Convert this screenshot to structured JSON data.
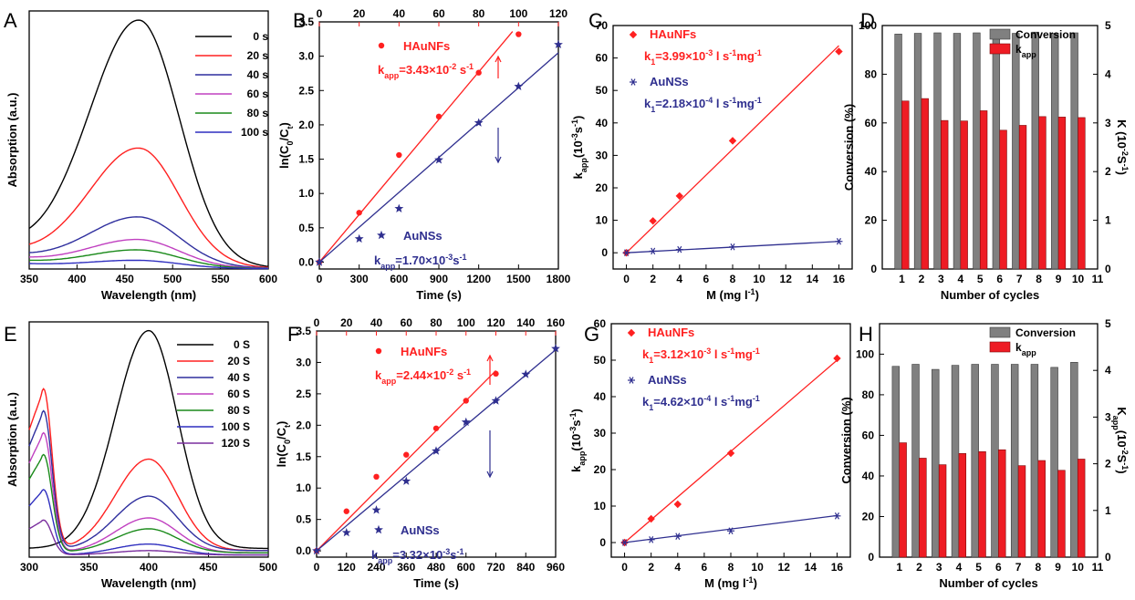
{
  "chart_data": [
    {
      "panel": "A",
      "type": "line",
      "xlabel": "Wavelength (nm)",
      "ylabel": "Absorption (a.u.)",
      "xlim": [
        350,
        600
      ],
      "xticks": [
        350,
        400,
        450,
        500,
        550,
        600
      ],
      "ylim": [
        0,
        1.0
      ],
      "yticks_shown": false,
      "legend_position": "top-right",
      "peak_x": 465,
      "series": [
        {
          "name": "0 s",
          "color": "#000000",
          "peak": 1.0,
          "baseline": 0.08
        },
        {
          "name": "20 s",
          "color": "#ff2020",
          "peak": 0.48,
          "baseline": 0.06
        },
        {
          "name": "40 s",
          "color": "#2f2f9e",
          "peak": 0.2,
          "baseline": 0.05
        },
        {
          "name": "60 s",
          "color": "#c040c0",
          "peak": 0.11,
          "baseline": 0.04
        },
        {
          "name": "80 s",
          "color": "#1a8a1a",
          "peak": 0.07,
          "baseline": 0.03
        },
        {
          "name": "100 s",
          "color": "#2f2fbf",
          "peak": 0.03,
          "baseline": 0.02
        }
      ]
    },
    {
      "panel": "B",
      "type": "scatter",
      "xlabel": "Time (s)",
      "ylabel": "ln(C0/Ct)",
      "xlim": [
        0,
        1800
      ],
      "xticks": [
        0,
        300,
        600,
        900,
        1200,
        1500,
        1800
      ],
      "x2lim": [
        0,
        120
      ],
      "x2ticks": [
        0,
        20,
        40,
        60,
        80,
        100,
        120
      ],
      "ylim": [
        -0.1,
        3.5
      ],
      "yticks": [
        0.0,
        0.5,
        1.0,
        1.5,
        2.0,
        2.5,
        3.0,
        3.5
      ],
      "series": [
        {
          "name": "HAuNFs",
          "axis": "top",
          "color": "#ff2020",
          "marker": "circle",
          "x": [
            0,
            20,
            40,
            60,
            80,
            100
          ],
          "y": [
            0,
            0.72,
            1.56,
            2.12,
            2.76,
            3.32
          ],
          "fit_x": [
            0,
            97
          ],
          "fit_y": [
            0,
            3.36
          ],
          "annotation": "kapp=3.43×10-2 s-1"
        },
        {
          "name": "AuNSs",
          "axis": "bottom",
          "color": "#2f2f8f",
          "marker": "star",
          "x": [
            0,
            300,
            600,
            900,
            1200,
            1500,
            1800
          ],
          "y": [
            0,
            0.34,
            0.78,
            1.49,
            2.03,
            2.56,
            3.17
          ],
          "fit_x": [
            0,
            1800
          ],
          "fit_y": [
            0,
            3.05
          ],
          "annotation": "kapp=1.70×10-3s-1"
        }
      ]
    },
    {
      "panel": "C",
      "type": "scatter",
      "xlabel": "M (mg l-1)",
      "ylabel": "kapp(10-3s-1)",
      "xlim": [
        -1,
        17
      ],
      "xticks": [
        0,
        2,
        4,
        6,
        8,
        10,
        12,
        14,
        16
      ],
      "ylim": [
        -5,
        70
      ],
      "yticks": [
        0,
        10,
        20,
        30,
        40,
        50,
        60,
        70
      ],
      "series": [
        {
          "name": "HAuNFs",
          "color": "#ff2020",
          "marker": "diamond",
          "x": [
            0,
            2,
            4,
            8,
            16
          ],
          "y": [
            0,
            9.8,
            17.5,
            34.5,
            62.0
          ],
          "fit_x": [
            0,
            16
          ],
          "fit_y": [
            0,
            63.8
          ],
          "annotation": "k1=3.99×10-3 l s-1mg-1"
        },
        {
          "name": "AuNSs",
          "color": "#2f2f8f",
          "marker": "asterisk",
          "x": [
            0,
            2,
            4,
            8,
            16
          ],
          "y": [
            0,
            0.5,
            1.0,
            1.8,
            3.5
          ],
          "fit_x": [
            0,
            16
          ],
          "fit_y": [
            0,
            3.5
          ],
          "annotation": "k1=2.18×10-4 l s-1mg-1"
        }
      ]
    },
    {
      "panel": "D",
      "type": "bar",
      "xlabel": "Number of cycles",
      "ylabel": "Conversion (%)",
      "y2label": "K (10-2S-1)",
      "categories": [
        "1",
        "2",
        "3",
        "4",
        "5",
        "6",
        "7",
        "8",
        "9",
        "10"
      ],
      "xlim": [
        0,
        11
      ],
      "xticks": [
        1,
        2,
        3,
        4,
        5,
        6,
        7,
        8,
        9,
        10,
        11
      ],
      "ylim": [
        0,
        100
      ],
      "yticks": [
        0,
        20,
        40,
        60,
        80,
        100
      ],
      "y2lim": [
        0,
        5
      ],
      "y2ticks": [
        0,
        1,
        2,
        3,
        4,
        5
      ],
      "legend_position": "top-right",
      "series": [
        {
          "name": "Conversion",
          "axis": "left",
          "color": "#808080",
          "values": [
            96.5,
            96.8,
            97.0,
            96.8,
            97.0,
            96.5,
            96.8,
            97.3,
            96.8,
            97.0
          ]
        },
        {
          "name": "kapp",
          "axis": "right",
          "color": "#ee1c24",
          "values": [
            3.45,
            3.5,
            3.05,
            3.04,
            3.25,
            2.85,
            2.95,
            3.13,
            3.12,
            3.11
          ]
        }
      ]
    },
    {
      "panel": "E",
      "type": "line",
      "xlabel": "Wavelength (nm)",
      "ylabel": "Absorption (a.u.)",
      "xlim": [
        300,
        500
      ],
      "xticks": [
        300,
        350,
        400,
        450,
        500
      ],
      "ylim": [
        0,
        1.0
      ],
      "yticks_shown": false,
      "legend_position": "top-right",
      "series": [
        {
          "name": "0 S",
          "color": "#000000",
          "peak400": 1.0,
          "peak310": 0.0,
          "base": 0.04
        },
        {
          "name": "20 S",
          "color": "#ff2020",
          "peak400": 0.42,
          "peak310": 0.74,
          "base": 0.03
        },
        {
          "name": "40 S",
          "color": "#2f2f9e",
          "peak400": 0.25,
          "peak310": 0.64,
          "base": 0.03
        },
        {
          "name": "60 S",
          "color": "#c040c0",
          "peak400": 0.16,
          "peak310": 0.55,
          "base": 0.02
        },
        {
          "name": "80 S",
          "color": "#1a8a1a",
          "peak400": 0.11,
          "peak310": 0.45,
          "base": 0.02
        },
        {
          "name": "100 S",
          "color": "#2f2fbf",
          "peak400": 0.05,
          "peak310": 0.3,
          "base": 0.01
        },
        {
          "name": "120 S",
          "color": "#7a2f9e",
          "peak400": 0.02,
          "peak310": 0.16,
          "base": 0.01
        }
      ]
    },
    {
      "panel": "F",
      "type": "scatter",
      "xlabel": "Time (s)",
      "ylabel": "ln(C0/Ct)",
      "xlim": [
        0,
        960
      ],
      "xticks": [
        0,
        120,
        240,
        360,
        480,
        600,
        720,
        840,
        960
      ],
      "x2lim": [
        0,
        160
      ],
      "x2ticks": [
        0,
        20,
        40,
        60,
        80,
        100,
        120,
        140,
        160
      ],
      "ylim": [
        -0.1,
        3.5
      ],
      "yticks": [
        0.0,
        0.5,
        1.0,
        1.5,
        2.0,
        2.5,
        3.0,
        3.5
      ],
      "series": [
        {
          "name": "HAuNFs",
          "axis": "top",
          "color": "#ff2020",
          "marker": "circle",
          "x": [
            0,
            20,
            40,
            60,
            80,
            100,
            120
          ],
          "y": [
            0,
            0.63,
            1.18,
            1.53,
            1.95,
            2.39,
            2.82
          ],
          "fit_x": [
            0,
            120
          ],
          "fit_y": [
            0,
            2.87
          ],
          "annotation": "kapp=2.44×10-2 s-1"
        },
        {
          "name": "AuNSs",
          "axis": "bottom",
          "color": "#2f2f8f",
          "marker": "star",
          "x": [
            0,
            120,
            240,
            360,
            480,
            600,
            720,
            840,
            960
          ],
          "y": [
            0,
            0.29,
            0.65,
            1.11,
            1.59,
            2.05,
            2.39,
            2.81,
            3.22
          ],
          "fit_x": [
            0,
            960
          ],
          "fit_y": [
            0,
            3.2
          ],
          "annotation": "kapp=3.32×10-3s-1"
        }
      ]
    },
    {
      "panel": "G",
      "type": "scatter",
      "xlabel": "M (mg l-1)",
      "ylabel": "kapp(10-3s-1)",
      "xlim": [
        -1,
        17
      ],
      "xticks": [
        0,
        2,
        4,
        6,
        8,
        10,
        12,
        14,
        16
      ],
      "ylim": [
        -4,
        60
      ],
      "yticks": [
        0,
        10,
        20,
        30,
        40,
        50,
        60
      ],
      "series": [
        {
          "name": "HAuNFs",
          "color": "#ff2020",
          "marker": "diamond",
          "x": [
            0,
            2,
            4,
            8,
            16
          ],
          "y": [
            0,
            6.5,
            10.5,
            24.5,
            50.5
          ],
          "fit_x": [
            0,
            16
          ],
          "fit_y": [
            0,
            50.0
          ],
          "annotation": "k1=3.12×10-3 l s-1mg-1"
        },
        {
          "name": "AuNSs",
          "color": "#2f2f8f",
          "marker": "asterisk",
          "x": [
            0,
            2,
            4,
            8,
            16
          ],
          "y": [
            0,
            0.8,
            1.7,
            3.2,
            7.3
          ],
          "fit_x": [
            0,
            16
          ],
          "fit_y": [
            0,
            7.4
          ],
          "annotation": "k1=4.62×10-4 l s-1mg-1"
        }
      ]
    },
    {
      "panel": "H",
      "type": "bar",
      "xlabel": "Number of cycles",
      "ylabel": "Conversion (%)",
      "y2label": "Kapp(10-2S-1)",
      "categories": [
        "1",
        "2",
        "3",
        "4",
        "5",
        "6",
        "7",
        "8",
        "9",
        "10"
      ],
      "xlim": [
        0,
        11
      ],
      "xticks": [
        1,
        2,
        3,
        4,
        5,
        6,
        7,
        8,
        9,
        10,
        11
      ],
      "ylim": [
        0,
        115
      ],
      "yticks": [
        0,
        20,
        40,
        60,
        80,
        100
      ],
      "y2lim": [
        0,
        5
      ],
      "y2ticks": [
        0,
        1,
        2,
        3,
        4,
        5
      ],
      "legend_position": "top-right",
      "series": [
        {
          "name": "Conversion",
          "axis": "left",
          "color": "#808080",
          "values": [
            94,
            95,
            92.5,
            94.5,
            95,
            95,
            95,
            95,
            93.5,
            96
          ]
        },
        {
          "name": "kapp",
          "axis": "right",
          "color": "#ee1c24",
          "values": [
            2.45,
            2.12,
            1.98,
            2.22,
            2.26,
            2.3,
            1.96,
            2.07,
            1.86,
            2.1
          ]
        }
      ]
    }
  ]
}
